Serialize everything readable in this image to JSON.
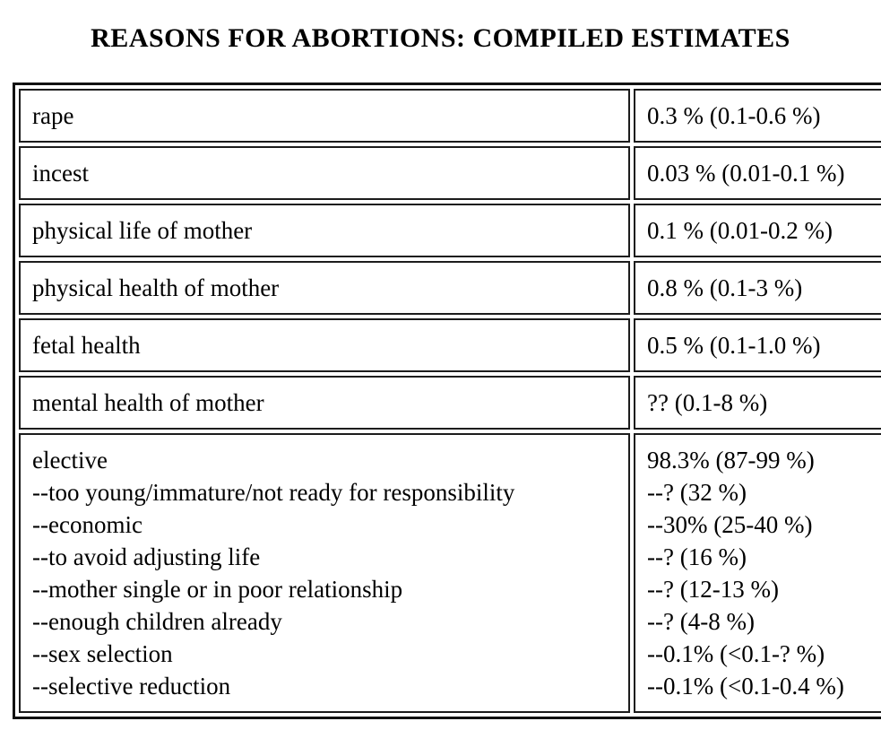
{
  "title": "REASONS FOR ABORTIONS: COMPILED ESTIMATES",
  "table": {
    "rows": [
      {
        "reason": "rape",
        "estimate": "0.3 % (0.1-0.6 %)"
      },
      {
        "reason": "incest",
        "estimate": "0.03 % (0.01-0.1 %)"
      },
      {
        "reason": "physical life of mother",
        "estimate": "0.1 % (0.01-0.2 %)"
      },
      {
        "reason": "physical health of mother",
        "estimate": "0.8 % (0.1-3 %)"
      },
      {
        "reason": "fetal health",
        "estimate": "0.5 % (0.1-1.0 %)"
      },
      {
        "reason": "mental health of mother",
        "estimate": "?? (0.1-8 %)"
      },
      {
        "reason": "elective\n--too young/immature/not ready for responsibility\n--economic\n--to avoid adjusting life\n--mother single or in poor relationship\n--enough children already\n--sex selection\n--selective reduction",
        "estimate": "98.3% (87-99 %)\n--? (32 %)\n--30% (25-40 %)\n--? (16 %)\n--? (12-13 %)\n--? (4-8 %)\n--0.1% (<0.1-? %)\n--0.1% (<0.1-0.4 %)"
      }
    ]
  }
}
